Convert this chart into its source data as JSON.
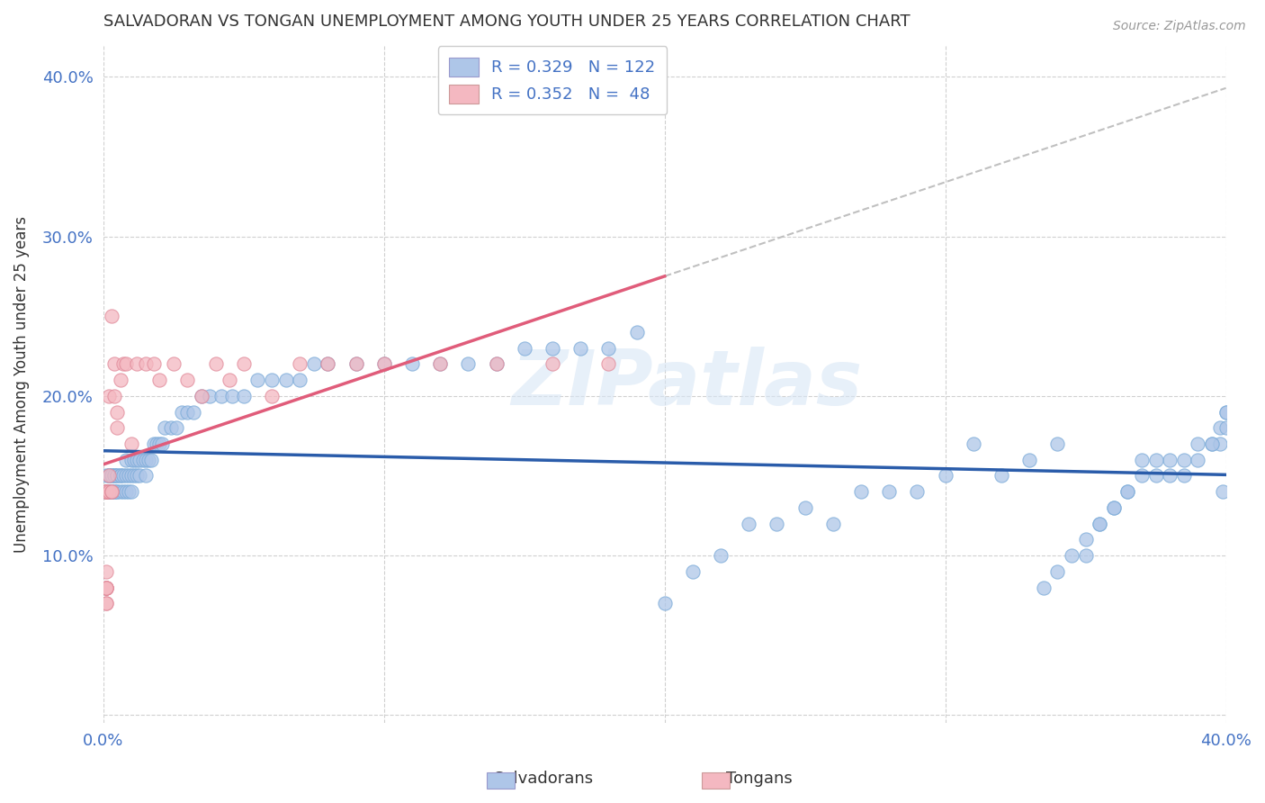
{
  "title": "SALVADORAN VS TONGAN UNEMPLOYMENT AMONG YOUTH UNDER 25 YEARS CORRELATION CHART",
  "source": "Source: ZipAtlas.com",
  "ylabel": "Unemployment Among Youth under 25 years",
  "xlabel": "",
  "xlim": [
    0.0,
    0.4
  ],
  "ylim": [
    -0.005,
    0.42
  ],
  "yticks": [
    0.0,
    0.1,
    0.2,
    0.3,
    0.4
  ],
  "xticks": [
    0.0,
    0.1,
    0.2,
    0.3,
    0.4
  ],
  "ytick_labels": [
    "",
    "10.0%",
    "20.0%",
    "30.0%",
    "40.0%"
  ],
  "xtick_labels": [
    "0.0%",
    "",
    "",
    "",
    "40.0%"
  ],
  "salvadoran_color": "#aec6e8",
  "tongan_color": "#f4b8c1",
  "salvadoran_line_color": "#2a5caa",
  "tongan_line_color": "#e05c7a",
  "legend_R_salv": "R = 0.329",
  "legend_N_salv": "N = 122",
  "legend_R_tong": "R = 0.352",
  "legend_N_tong": "N =  48",
  "watermark_text": "ZIPatlas",
  "background_color": "#ffffff",
  "grid_color": "#cccccc",
  "salv_x": [
    0.001,
    0.001,
    0.001,
    0.001,
    0.002,
    0.002,
    0.002,
    0.002,
    0.002,
    0.003,
    0.003,
    0.003,
    0.003,
    0.003,
    0.004,
    0.004,
    0.004,
    0.004,
    0.005,
    0.005,
    0.005,
    0.005,
    0.006,
    0.006,
    0.006,
    0.007,
    0.007,
    0.008,
    0.008,
    0.008,
    0.009,
    0.009,
    0.01,
    0.01,
    0.01,
    0.011,
    0.011,
    0.012,
    0.012,
    0.013,
    0.013,
    0.014,
    0.015,
    0.015,
    0.016,
    0.017,
    0.018,
    0.019,
    0.02,
    0.021,
    0.022,
    0.024,
    0.026,
    0.028,
    0.03,
    0.032,
    0.035,
    0.038,
    0.042,
    0.046,
    0.05,
    0.055,
    0.06,
    0.065,
    0.07,
    0.075,
    0.08,
    0.09,
    0.1,
    0.11,
    0.12,
    0.13,
    0.14,
    0.15,
    0.16,
    0.17,
    0.18,
    0.19,
    0.2,
    0.21,
    0.22,
    0.23,
    0.24,
    0.25,
    0.26,
    0.27,
    0.28,
    0.29,
    0.3,
    0.31,
    0.32,
    0.33,
    0.34,
    0.35,
    0.355,
    0.36,
    0.365,
    0.37,
    0.375,
    0.38,
    0.385,
    0.39,
    0.395,
    0.398,
    0.399,
    0.4,
    0.4,
    0.4,
    0.398,
    0.395,
    0.39,
    0.385,
    0.38,
    0.375,
    0.37,
    0.365,
    0.36,
    0.355,
    0.35,
    0.345,
    0.34,
    0.335
  ],
  "salv_y": [
    0.14,
    0.14,
    0.14,
    0.15,
    0.15,
    0.14,
    0.15,
    0.14,
    0.14,
    0.14,
    0.14,
    0.15,
    0.15,
    0.14,
    0.14,
    0.14,
    0.15,
    0.15,
    0.14,
    0.14,
    0.15,
    0.15,
    0.14,
    0.15,
    0.15,
    0.14,
    0.15,
    0.14,
    0.15,
    0.16,
    0.14,
    0.15,
    0.14,
    0.15,
    0.16,
    0.15,
    0.16,
    0.15,
    0.16,
    0.15,
    0.16,
    0.16,
    0.15,
    0.16,
    0.16,
    0.16,
    0.17,
    0.17,
    0.17,
    0.17,
    0.18,
    0.18,
    0.18,
    0.19,
    0.19,
    0.19,
    0.2,
    0.2,
    0.2,
    0.2,
    0.2,
    0.21,
    0.21,
    0.21,
    0.21,
    0.22,
    0.22,
    0.22,
    0.22,
    0.22,
    0.22,
    0.22,
    0.22,
    0.23,
    0.23,
    0.23,
    0.23,
    0.24,
    0.07,
    0.09,
    0.1,
    0.12,
    0.12,
    0.13,
    0.12,
    0.14,
    0.14,
    0.14,
    0.15,
    0.17,
    0.15,
    0.16,
    0.17,
    0.1,
    0.12,
    0.13,
    0.14,
    0.15,
    0.15,
    0.15,
    0.16,
    0.17,
    0.17,
    0.18,
    0.14,
    0.19,
    0.19,
    0.18,
    0.17,
    0.17,
    0.16,
    0.15,
    0.16,
    0.16,
    0.16,
    0.14,
    0.13,
    0.12,
    0.11,
    0.1,
    0.09,
    0.08
  ],
  "tong_x": [
    0.001,
    0.001,
    0.001,
    0.001,
    0.001,
    0.001,
    0.001,
    0.001,
    0.001,
    0.001,
    0.001,
    0.001,
    0.001,
    0.001,
    0.001,
    0.002,
    0.002,
    0.002,
    0.003,
    0.003,
    0.003,
    0.004,
    0.004,
    0.005,
    0.005,
    0.006,
    0.007,
    0.008,
    0.01,
    0.012,
    0.015,
    0.018,
    0.02,
    0.025,
    0.03,
    0.035,
    0.04,
    0.045,
    0.05,
    0.06,
    0.07,
    0.08,
    0.09,
    0.1,
    0.12,
    0.14,
    0.16,
    0.18
  ],
  "tong_y": [
    0.14,
    0.14,
    0.14,
    0.14,
    0.14,
    0.08,
    0.08,
    0.08,
    0.08,
    0.09,
    0.07,
    0.07,
    0.08,
    0.14,
    0.14,
    0.14,
    0.2,
    0.15,
    0.14,
    0.14,
    0.25,
    0.2,
    0.22,
    0.18,
    0.19,
    0.21,
    0.22,
    0.22,
    0.17,
    0.22,
    0.22,
    0.22,
    0.21,
    0.22,
    0.21,
    0.2,
    0.22,
    0.21,
    0.22,
    0.2,
    0.22,
    0.22,
    0.22,
    0.22,
    0.22,
    0.22,
    0.22,
    0.22
  ]
}
